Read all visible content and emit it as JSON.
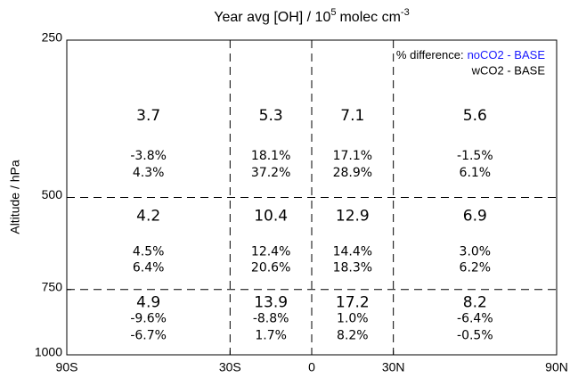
{
  "chart_data": {
    "type": "text-grid",
    "title": [
      "Year avg [OH] / 10",
      "5",
      "molec cm",
      "-3"
    ],
    "ylabel": "Altitude / hPa",
    "xlim": [
      -90,
      90
    ],
    "xticks": [
      {
        "value": -90,
        "label": "90S"
      },
      {
        "value": -30,
        "label": "30S"
      },
      0,
      {
        "value": 30,
        "label": "30N"
      },
      {
        "value": 90,
        "label": "90N"
      }
    ],
    "ylim": [
      250,
      1000
    ],
    "ylog": true,
    "yinverted": true,
    "yticks": [
      250,
      500,
      750,
      1000
    ],
    "grid": true,
    "values": [
      [
        3.7,
        5.3,
        7.1,
        5.6
      ],
      [
        4.2,
        10.4,
        12.9,
        6.9
      ],
      [
        4.9,
        13.9,
        17.2,
        8.2
      ]
    ],
    "legend_title": "% difference:",
    "legend": "upper right",
    "series": [
      {
        "name": "noCO2 - BASE",
        "color": "#1a1aff",
        "values": [
          [
            -3.8,
            18.1,
            17.1,
            -1.5
          ],
          [
            4.5,
            12.4,
            14.4,
            3.0
          ],
          [
            -9.6,
            -8.8,
            1.0,
            -6.4
          ]
        ],
        "value_labels": [
          [
            "-3.8%",
            "18.1%",
            "17.1%",
            "-1.5%"
          ],
          [
            "4.5%",
            "12.4%",
            "14.4%",
            "3.0%"
          ],
          [
            "-9.6%",
            "-8.8%",
            "1.0%",
            "-6.4%"
          ]
        ]
      },
      {
        "name": "wCO2 - BASE",
        "color": "#ff1a1a",
        "values": [
          [
            4.3,
            37.2,
            28.9,
            6.1
          ],
          [
            6.4,
            20.6,
            18.3,
            6.2
          ],
          [
            -6.7,
            1.7,
            8.2,
            -0.5
          ]
        ],
        "value_labels": [
          [
            "4.3%",
            "37.2%",
            "28.9%",
            "6.1%"
          ],
          [
            "6.4%",
            "20.6%",
            "18.3%",
            "6.2%"
          ],
          [
            "-6.7%",
            "1.7%",
            "8.2%",
            "-0.5%"
          ]
        ]
      }
    ]
  }
}
